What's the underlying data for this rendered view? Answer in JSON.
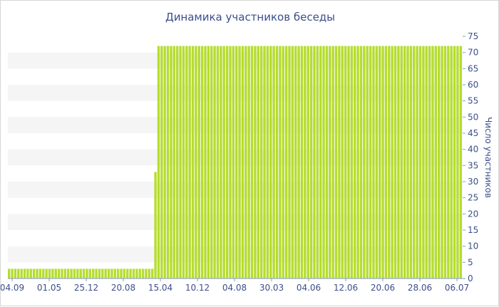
{
  "chart_data": {
    "type": "bar",
    "title": "Динамика участников беседы",
    "ylabel": "Число участников",
    "xlabel": "",
    "ylim": [
      0,
      75
    ],
    "yticks": [
      0,
      5,
      10,
      15,
      20,
      25,
      30,
      35,
      40,
      45,
      50,
      55,
      60,
      65,
      70,
      75
    ],
    "grid": "horizontal bands",
    "color": "#b5dd2f",
    "band_color": "#f5f5f5",
    "x_tick_labels": [
      "04.09",
      "01.05",
      "25.12",
      "20.08",
      "15.04",
      "10.12",
      "04.08",
      "30.03",
      "04.06",
      "12.06",
      "20.06",
      "28.06",
      "06.07"
    ],
    "values": [
      3,
      3,
      3,
      3,
      3,
      3,
      3,
      3,
      3,
      3,
      3,
      3,
      3,
      3,
      3,
      3,
      3,
      3,
      3,
      3,
      3,
      3,
      3,
      3,
      3,
      3,
      3,
      3,
      3,
      3,
      3,
      3,
      3,
      3,
      3,
      3,
      3,
      3,
      3,
      3,
      3,
      3,
      3,
      3,
      3,
      3,
      3,
      33,
      72,
      72,
      72,
      72,
      72,
      72,
      72,
      72,
      72,
      72,
      72,
      72,
      72,
      72,
      72,
      72,
      72,
      72,
      72,
      72,
      72,
      72,
      72,
      72,
      72,
      72,
      72,
      72,
      72,
      72,
      72,
      72,
      72,
      72,
      72,
      72,
      72,
      72,
      72,
      72,
      72,
      72,
      72,
      72,
      72,
      72,
      72,
      72,
      72,
      72,
      72,
      72,
      72,
      72,
      72,
      72,
      72,
      72,
      72,
      72,
      72,
      72,
      72,
      72,
      72,
      72,
      72,
      72,
      72,
      72,
      72,
      72,
      72,
      72,
      72,
      72,
      72,
      72,
      72,
      72,
      72,
      72,
      72,
      72,
      72,
      72,
      72,
      72,
      72,
      72,
      72,
      72,
      72,
      72,
      72,
      72,
      72,
      72
    ]
  }
}
